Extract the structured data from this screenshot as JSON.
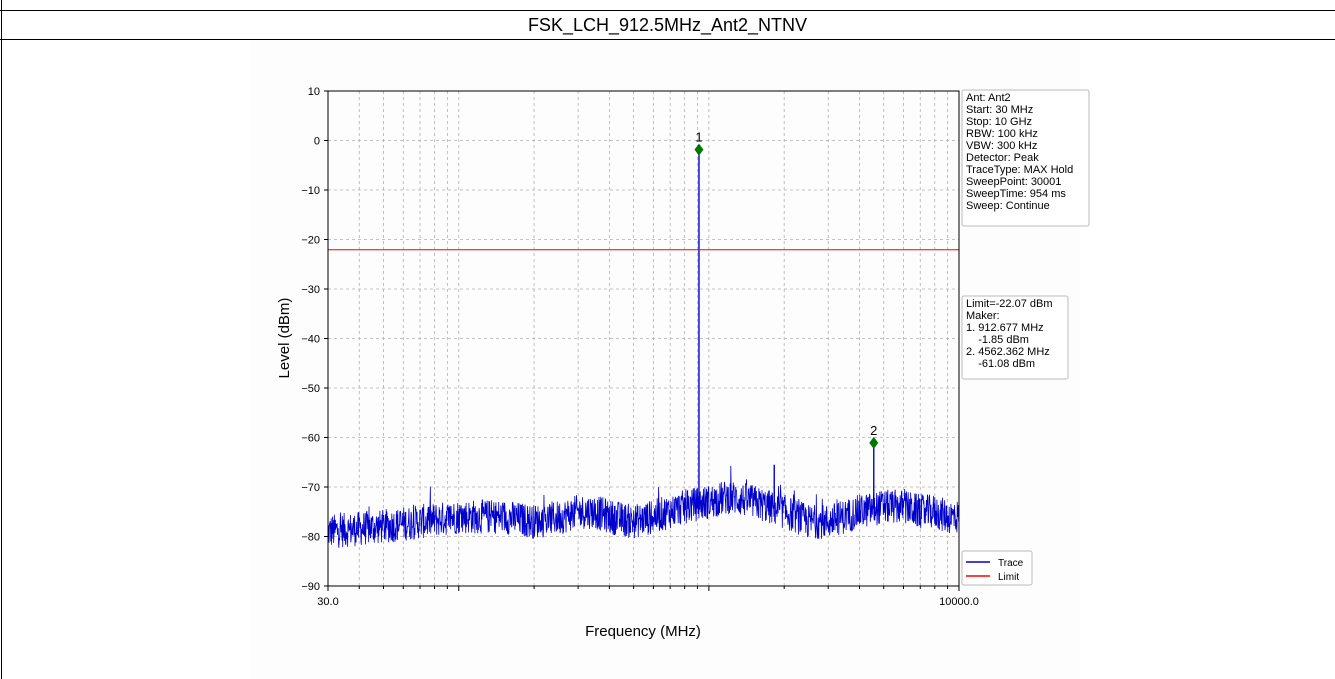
{
  "page": {
    "title": "FSK_LCH_912.5MHz_Ant2_NTNV"
  },
  "chart_data": {
    "type": "line",
    "title": "",
    "xlabel": "Frequency (MHz)",
    "ylabel": "Level (dBm)",
    "xscale": "log",
    "xlim": [
      30.0,
      10000.0
    ],
    "ylim": [
      -90,
      10
    ],
    "x_tick_labels": [
      "30.0",
      "10000.0"
    ],
    "y_ticks": [
      10,
      0,
      -10,
      -20,
      -30,
      -40,
      -50,
      -60,
      -70,
      -80,
      -90
    ],
    "y_tick_labels": [
      "10",
      "0",
      "−10",
      "−20",
      "−30",
      "−40",
      "−50",
      "−60",
      "−70",
      "−80",
      "−90"
    ],
    "grid": true,
    "limit": {
      "name": "Limit",
      "value": -22.07,
      "color": "#ff0000"
    },
    "series": [
      {
        "name": "Trace",
        "color": "#0000cc",
        "noise_floor_profile": {
          "x": [
            30,
            50,
            70,
            100,
            150,
            200,
            260,
            300,
            350,
            400,
            500,
            600,
            800,
            1000,
            1200,
            1500,
            2000,
            2500,
            3000,
            4000,
            5000,
            6000,
            7000,
            8000,
            9000,
            10000
          ],
          "y": [
            -79,
            -78,
            -77,
            -76,
            -76,
            -77,
            -76,
            -75,
            -75,
            -76,
            -77,
            -76,
            -74,
            -73,
            -72,
            -73,
            -75,
            -77,
            -77,
            -75,
            -74,
            -74,
            -75,
            -75,
            -76,
            -76
          ]
        },
        "spikes": [
          {
            "x": 912.677,
            "y": -1.85
          },
          {
            "x": 1825,
            "y": -65.5
          },
          {
            "x": 4562.362,
            "y": -61.08
          }
        ]
      }
    ],
    "markers": [
      {
        "label": "1",
        "x": 912.677,
        "y": -1.85,
        "color": "#007700"
      },
      {
        "label": "2",
        "x": 4562.362,
        "y": -61.08,
        "color": "#007700"
      }
    ],
    "legend": {
      "placement": "bottom-right",
      "entries": [
        {
          "name": "Trace",
          "color": "#0000cc"
        },
        {
          "name": "Limit",
          "color": "#ff0000"
        }
      ]
    },
    "info_box": [
      "Ant: Ant2",
      "Start: 30 MHz",
      "Stop: 10 GHz",
      "RBW: 100 kHz",
      "VBW: 300 kHz",
      "Detector: Peak",
      "TraceType: MAX Hold",
      "SweepPoint: 30001",
      "SweepTime: 954 ms",
      "Sweep: Continue"
    ],
    "marker_box": [
      "Limit=-22.07 dBm",
      "Maker:",
      "1. 912.677 MHz",
      "    -1.85 dBm",
      "2. 4562.362 MHz",
      "    -61.08 dBm"
    ]
  }
}
